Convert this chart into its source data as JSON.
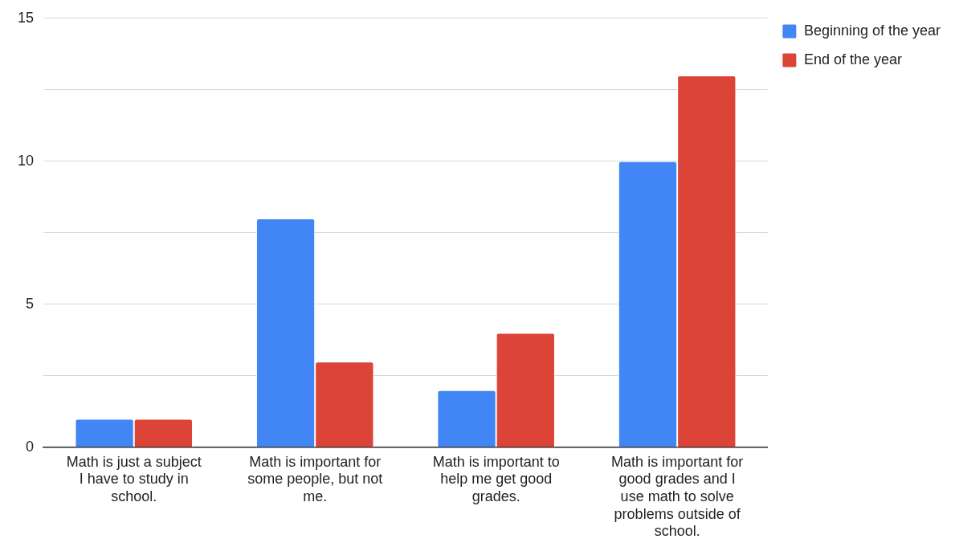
{
  "chart_data": {
    "type": "bar",
    "categories": [
      "Math is just a subject I have to study in school.",
      "Math is important for some people, but not me.",
      "Math is important to help me get good grades.",
      "Math is important for good grades and I use math to solve problems outside of school."
    ],
    "series": [
      {
        "name": "Beginning of the year",
        "color": "#4285f4",
        "values": [
          1,
          8,
          2,
          10
        ]
      },
      {
        "name": "End of the year",
        "color": "#db4437",
        "values": [
          1,
          3,
          4,
          13
        ]
      }
    ],
    "ylim": [
      0,
      15
    ],
    "yticks": [
      0,
      {
        "value": 2.5,
        "label": null
      },
      5,
      {
        "value": 7.5,
        "label": null
      },
      10,
      {
        "value": 12.5,
        "label": null
      },
      15
    ],
    "grid": "y",
    "legend": "top right"
  }
}
